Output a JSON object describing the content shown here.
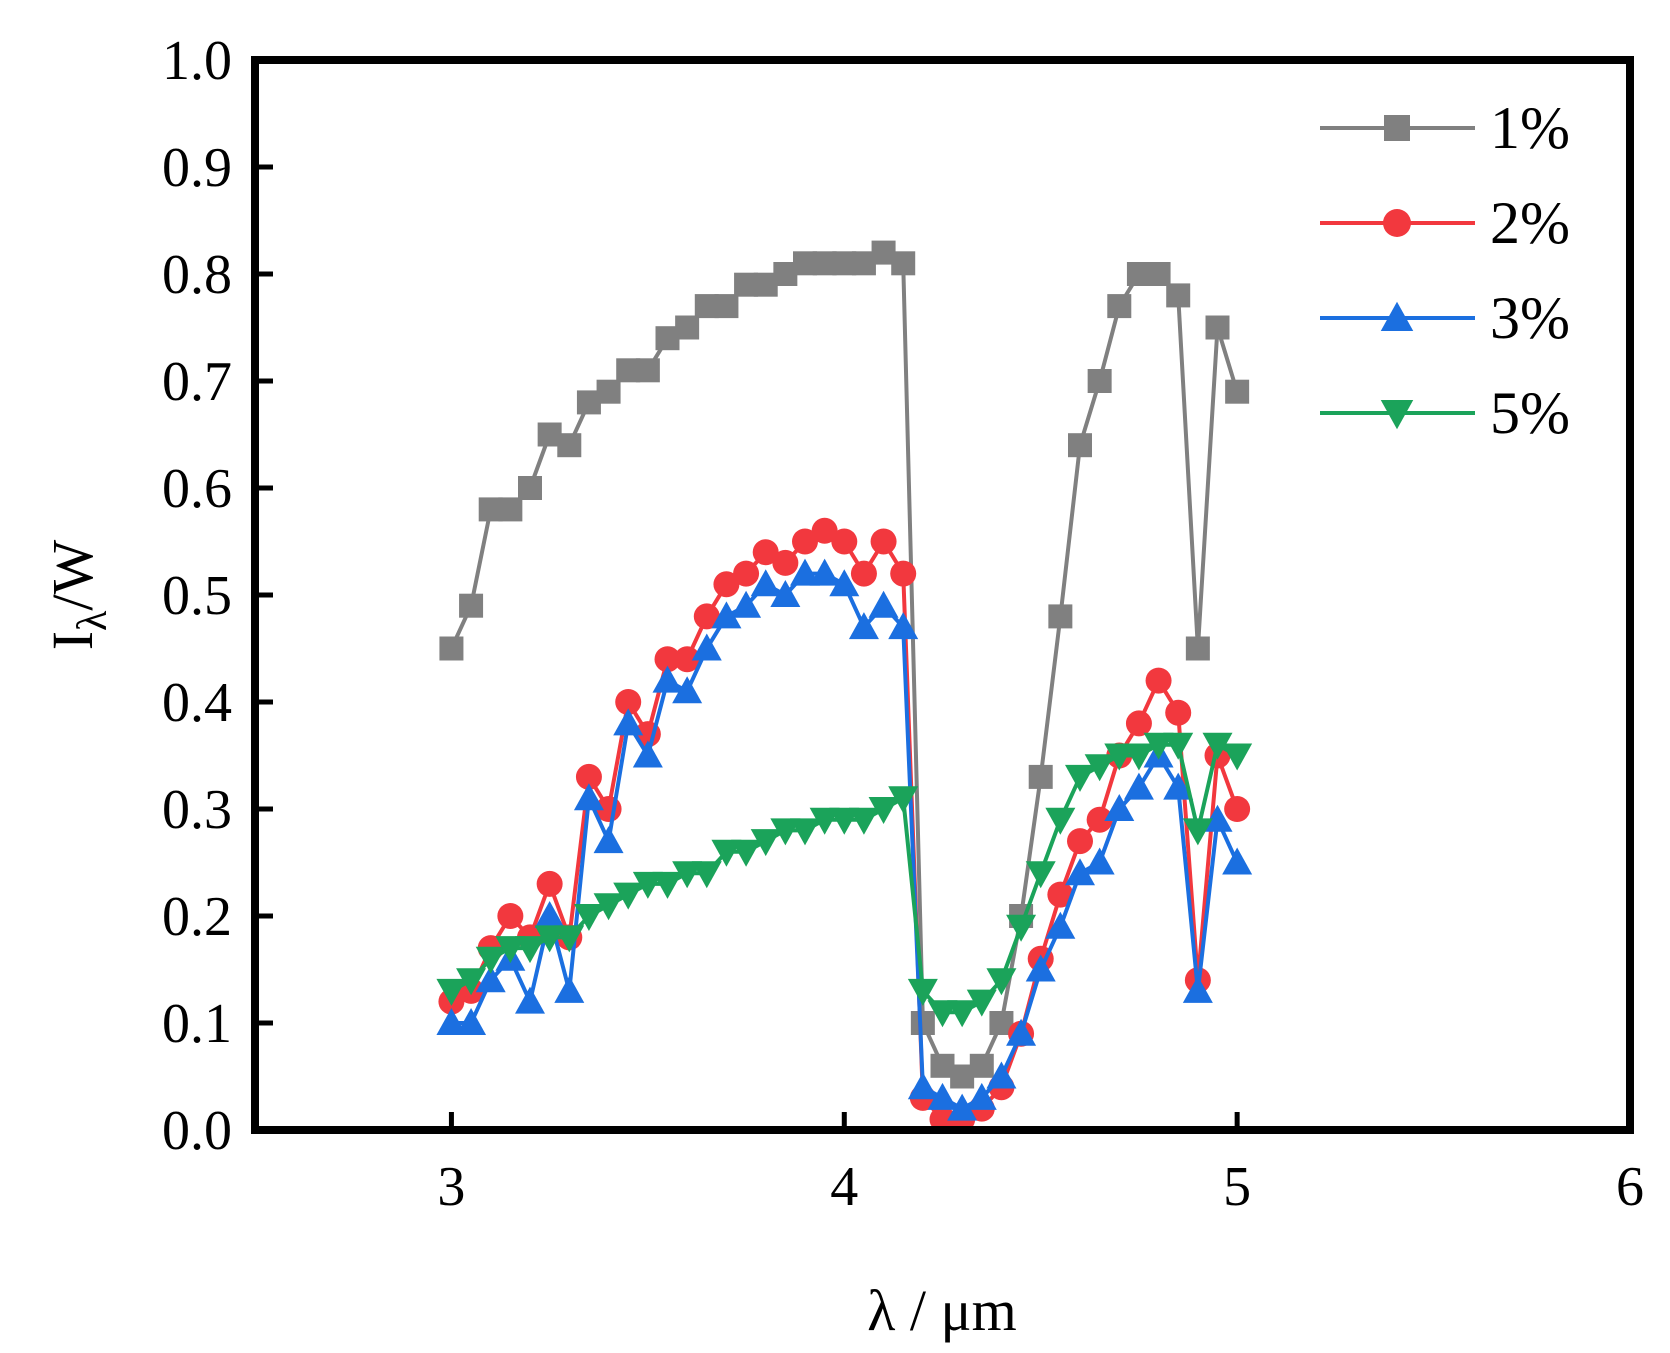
{
  "chart_data": {
    "type": "line",
    "title": "",
    "xlabel": "λ / μm",
    "ylabel": "Iλ/W",
    "ylabel_main": "I",
    "ylabel_sub": "λ",
    "ylabel_tail": "/W",
    "xlim": [
      2.5,
      6
    ],
    "ylim": [
      0,
      1
    ],
    "xticks": [
      3,
      4,
      5,
      6
    ],
    "xtick_labels": [
      "3",
      "4",
      "5",
      "6"
    ],
    "yticks": [
      0,
      0.1,
      0.2,
      0.3,
      0.4,
      0.5,
      0.6,
      0.7,
      0.8,
      0.9,
      1.0
    ],
    "ytick_labels": [
      "0.0",
      "0.1",
      "0.2",
      "0.3",
      "0.4",
      "0.5",
      "0.6",
      "0.7",
      "0.8",
      "0.9",
      "1.0"
    ],
    "grid": false,
    "legend_position": "top-right",
    "x": [
      3.0,
      3.05,
      3.1,
      3.15,
      3.2,
      3.25,
      3.3,
      3.35,
      3.4,
      3.45,
      3.5,
      3.55,
      3.6,
      3.65,
      3.7,
      3.75,
      3.8,
      3.85,
      3.9,
      3.95,
      4.0,
      4.05,
      4.1,
      4.15,
      4.2,
      4.25,
      4.3,
      4.35,
      4.4,
      4.45,
      4.5,
      4.55,
      4.6,
      4.65,
      4.7,
      4.75,
      4.8,
      4.85,
      4.9,
      4.95,
      5.0
    ],
    "series": [
      {
        "name": "1%",
        "color": "#808080",
        "marker": "square",
        "values": [
          0.45,
          0.49,
          0.58,
          0.58,
          0.6,
          0.65,
          0.64,
          0.68,
          0.69,
          0.71,
          0.71,
          0.74,
          0.75,
          0.77,
          0.77,
          0.79,
          0.79,
          0.8,
          0.81,
          0.81,
          0.81,
          0.81,
          0.82,
          0.81,
          0.1,
          0.06,
          0.05,
          0.06,
          0.1,
          0.2,
          0.33,
          0.48,
          0.64,
          0.7,
          0.77,
          0.8,
          0.8,
          0.78,
          0.45,
          0.75,
          0.69
        ]
      },
      {
        "name": "2%",
        "color": "#f2383e",
        "marker": "circle",
        "values": [
          0.12,
          0.13,
          0.17,
          0.2,
          0.18,
          0.23,
          0.18,
          0.33,
          0.3,
          0.4,
          0.37,
          0.44,
          0.44,
          0.48,
          0.51,
          0.52,
          0.54,
          0.53,
          0.55,
          0.56,
          0.55,
          0.52,
          0.55,
          0.52,
          0.03,
          0.01,
          0.01,
          0.02,
          0.04,
          0.09,
          0.16,
          0.22,
          0.27,
          0.29,
          0.35,
          0.38,
          0.42,
          0.39,
          0.14,
          0.35,
          0.3
        ]
      },
      {
        "name": "3%",
        "color": "#1b6fe0",
        "marker": "triangle-up",
        "values": [
          0.1,
          0.1,
          0.14,
          0.16,
          0.12,
          0.2,
          0.13,
          0.31,
          0.27,
          0.38,
          0.35,
          0.42,
          0.41,
          0.45,
          0.48,
          0.49,
          0.51,
          0.5,
          0.52,
          0.52,
          0.51,
          0.47,
          0.49,
          0.47,
          0.04,
          0.03,
          0.02,
          0.03,
          0.05,
          0.09,
          0.15,
          0.19,
          0.24,
          0.25,
          0.3,
          0.32,
          0.35,
          0.32,
          0.13,
          0.29,
          0.25
        ]
      },
      {
        "name": "5%",
        "color": "#1ba35a",
        "marker": "triangle-down",
        "values": [
          0.13,
          0.14,
          0.16,
          0.17,
          0.17,
          0.18,
          0.18,
          0.2,
          0.21,
          0.22,
          0.23,
          0.23,
          0.24,
          0.24,
          0.26,
          0.26,
          0.27,
          0.28,
          0.28,
          0.29,
          0.29,
          0.29,
          0.3,
          0.31,
          0.13,
          0.11,
          0.11,
          0.12,
          0.14,
          0.19,
          0.24,
          0.29,
          0.33,
          0.34,
          0.35,
          0.35,
          0.36,
          0.36,
          0.28,
          0.36,
          0.35
        ]
      }
    ]
  }
}
